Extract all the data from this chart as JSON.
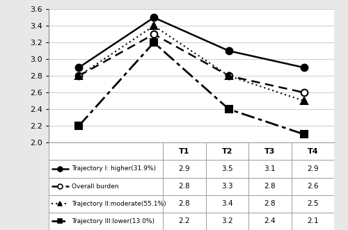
{
  "x_labels": [
    "T1",
    "T2",
    "T3",
    "T4"
  ],
  "x_values": [
    0,
    1,
    2,
    3
  ],
  "series": [
    {
      "label": "Trajectory I: higher(31.9%)",
      "values": [
        2.9,
        3.5,
        3.1,
        2.9
      ],
      "color": "#000000",
      "marker": "o",
      "markersize": 7,
      "linewidth": 1.8,
      "fillstyle": "full",
      "dashes": []
    },
    {
      "label": "Overall burden",
      "values": [
        2.8,
        3.3,
        2.8,
        2.6
      ],
      "color": "#000000",
      "marker": "o",
      "markersize": 7,
      "linewidth": 1.8,
      "fillstyle": "none",
      "dashes": [
        5,
        3
      ]
    },
    {
      "label": "Trajectory II:moderate(55.1%)",
      "values": [
        2.8,
        3.4,
        2.8,
        2.5
      ],
      "color": "#000000",
      "marker": "^",
      "markersize": 7,
      "linewidth": 1.5,
      "fillstyle": "full",
      "dashes": [
        1,
        2
      ]
    },
    {
      "label": "Trajectory III:lower(13.0%)",
      "values": [
        2.2,
        3.2,
        2.4,
        2.1
      ],
      "color": "#000000",
      "marker": "s",
      "markersize": 7,
      "linewidth": 2.0,
      "fillstyle": "full",
      "dashes": [
        7,
        2,
        2,
        2
      ]
    }
  ],
  "ylim": [
    2.0,
    3.6
  ],
  "yticks": [
    2.0,
    2.2,
    2.4,
    2.6,
    2.8,
    3.0,
    3.2,
    3.4,
    3.6
  ],
  "table_rows": [
    [
      "2.9",
      "3.5",
      "3.1",
      "2.9"
    ],
    [
      "2.8",
      "3.3",
      "2.8",
      "2.6"
    ],
    [
      "2.8",
      "3.4",
      "2.8",
      "2.5"
    ],
    [
      "2.2",
      "3.2",
      "2.4",
      "2.1"
    ]
  ],
  "row_labels": [
    "Trajectory I: higher(31.9%)",
    "Overall burden",
    "Trajectory II:moderate(55.1%)",
    "Trajectory III:lower(13.0%)"
  ],
  "col_labels": [
    "T1",
    "T2",
    "T3",
    "T4"
  ],
  "bg_color": "#e8e8e8",
  "plot_bg": "#ffffff",
  "grid_color": "#cccccc",
  "fig_width": 5.0,
  "fig_height": 3.31
}
